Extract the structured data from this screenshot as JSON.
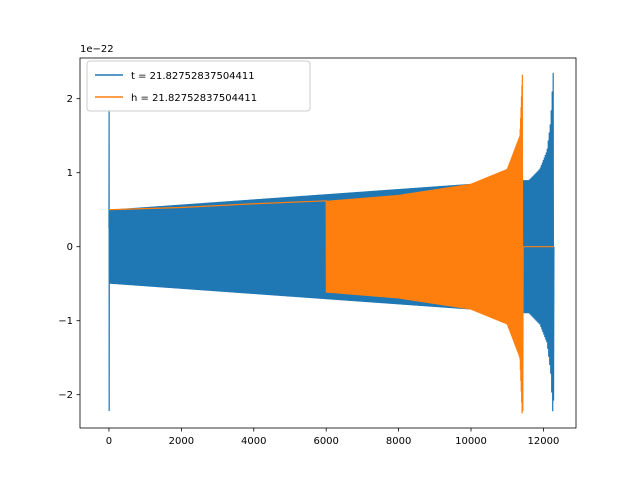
{
  "chart_data": {
    "type": "line",
    "title": "",
    "xlabel": "",
    "ylabel": "",
    "y_offset_label": "1e−22",
    "y_scale": 1e-22,
    "xlim": [
      -800,
      12900
    ],
    "ylim": [
      -2.45,
      2.55
    ],
    "xticks": [
      0,
      2000,
      4000,
      6000,
      8000,
      10000,
      12000
    ],
    "yticks": [
      -2,
      -1,
      0,
      1,
      2
    ],
    "ytick_labels": [
      "−2",
      "−1",
      "0",
      "1",
      "2"
    ],
    "grid": false,
    "legend_position": "top-left",
    "series": [
      {
        "name": "t = 21.82752837504411",
        "color": "#1f77b4",
        "x_start": 0,
        "x_end": 12290,
        "samples": [
          {
            "x": 0,
            "y": 0.25
          },
          {
            "x": 4,
            "y": 1.85
          },
          {
            "x": 6,
            "y": -2.22
          },
          {
            "x": 10,
            "y": 0.5
          },
          {
            "x": 11440,
            "y": 0.9
          },
          {
            "x": 11600,
            "y": 0.9
          },
          {
            "x": 11900,
            "y": 1.05
          },
          {
            "x": 12100,
            "y": 1.3
          },
          {
            "x": 12200,
            "y": 1.7
          },
          {
            "x": 12270,
            "y": 2.35
          },
          {
            "x": 12280,
            "y": -2.08
          },
          {
            "x": 12290,
            "y": 0
          }
        ]
      },
      {
        "name": "h = 21.82752837504411",
        "color": "#ff7f0e",
        "x_start": 0,
        "x_end": 12290,
        "samples": [
          {
            "x": 0,
            "y": 0.5
          },
          {
            "x": 2000,
            "y": 0.53
          },
          {
            "x": 4000,
            "y": 0.58
          },
          {
            "x": 6000,
            "y": 0.62
          },
          {
            "x": 8000,
            "y": 0.7
          },
          {
            "x": 10000,
            "y": 0.85
          },
          {
            "x": 11000,
            "y": 1.05
          },
          {
            "x": 11350,
            "y": 1.5
          },
          {
            "x": 11420,
            "y": 2.35
          },
          {
            "x": 11430,
            "y": -2.22
          },
          {
            "x": 11440,
            "y": 0
          },
          {
            "x": 12290,
            "y": 0
          }
        ]
      }
    ]
  }
}
